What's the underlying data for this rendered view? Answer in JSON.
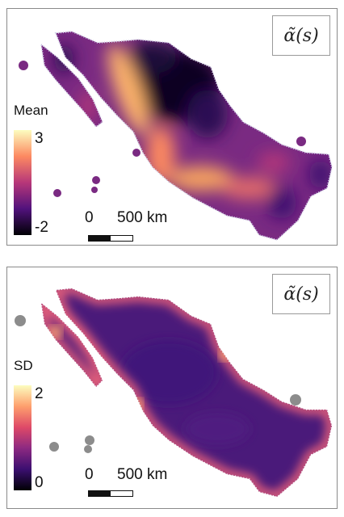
{
  "panels": {
    "mean": {
      "title": "α̃(s)",
      "legend": {
        "title": "Mean",
        "max_label": "3",
        "min_label": "-2",
        "palette": "magma"
      },
      "scale": {
        "zero": "0",
        "label": "500 km"
      }
    },
    "sd": {
      "title": "α̃(s)",
      "legend": {
        "title": "SD",
        "max_label": "2",
        "min_label": "0",
        "palette": "magma"
      },
      "scale": {
        "zero": "0",
        "label": "500 km"
      }
    }
  },
  "colors": {
    "mean_low": "#0b0420",
    "mean_mid": "#b73779",
    "mean_high": "#fcb26c",
    "sd_fill": "#4a1a7a",
    "sd_edge": "#e8607a",
    "island_gray": "#8c8c8c"
  }
}
